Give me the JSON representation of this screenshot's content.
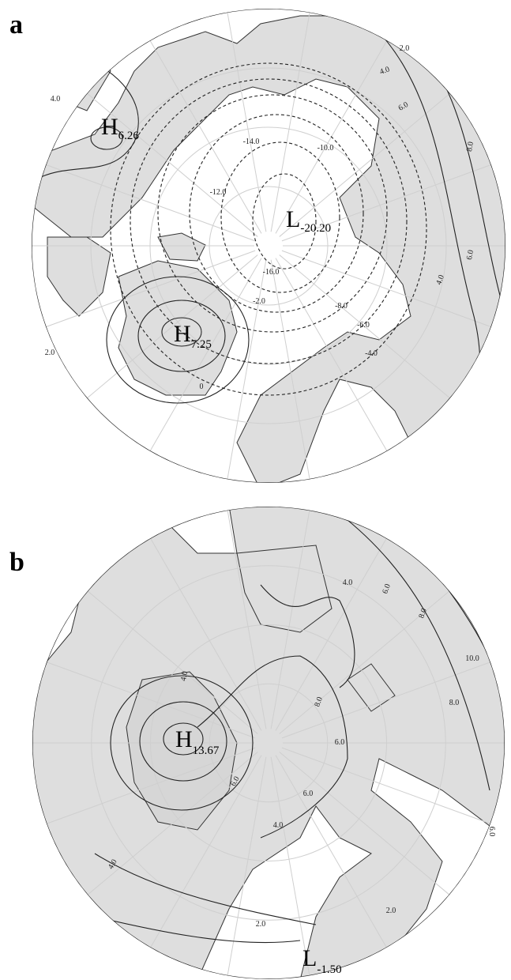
{
  "panels": [
    {
      "label": "a",
      "centers": [
        {
          "letter": "H",
          "value": "6.26"
        },
        {
          "letter": "H",
          "value": "7.25"
        },
        {
          "letter": "L",
          "value": "-20.20"
        }
      ],
      "contour_labels": [
        "4.0",
        "2.0",
        "4.0",
        "6.0",
        "8.0",
        "-14.0",
        "-12.0",
        "-16.0",
        "-8.0",
        "-6.0",
        "-4.0",
        "-2.0",
        "0",
        "2.0",
        "-10.0",
        "6.0",
        "4.0"
      ]
    },
    {
      "label": "b",
      "centers": [
        {
          "letter": "H",
          "value": "13.67"
        },
        {
          "letter": "L",
          "value": "-1.50"
        }
      ],
      "contour_labels": [
        "4.0",
        "6.0",
        "8.0",
        "10.0",
        "8.0",
        "6.0",
        "4.0",
        "6.0",
        "8.0",
        "6.0",
        "4.0",
        "2.0",
        "2.0",
        "6.0",
        "4.0"
      ]
    }
  ]
}
